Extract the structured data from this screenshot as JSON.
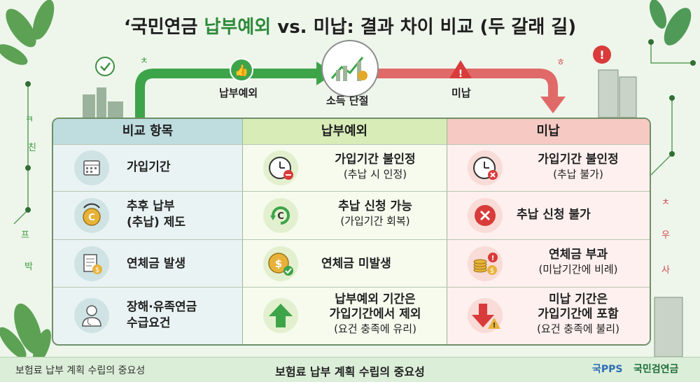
{
  "title": {
    "prefix": "‘국민연금 ",
    "highlight": "납부예외",
    "suffix": " vs. 미납: 결과 차이 비교 (두 갈래 길)"
  },
  "flow": {
    "left_label": "납부예외",
    "center_label": "소득 단절",
    "right_label": "미납"
  },
  "table": {
    "headers": [
      "비교 항목",
      "납부예외",
      "미납"
    ],
    "rows": [
      {
        "label": "가입기간",
        "paid": [
          "가입기간 불인정",
          "(추납 시 인정)"
        ],
        "unpaid": [
          "가입기간 불인정",
          "(추납 불가)"
        ]
      },
      {
        "label": [
          "추후 납부",
          "(추납) 제도"
        ],
        "paid": [
          "추납 신청 가능",
          "(가입기간 회복)"
        ],
        "unpaid": [
          "추납 신청 불가"
        ]
      },
      {
        "label": "연체금 발생",
        "paid": [
          "연체금 미발생"
        ],
        "unpaid": [
          "연체금 부과",
          "(미납기간에 비례)"
        ]
      },
      {
        "label": [
          "장해·유족연금",
          "수급요건"
        ],
        "paid": [
          "납부예외 기간은",
          "가입기간에서 제외",
          "(요건 충족에 유리)"
        ],
        "unpaid": [
          "미납 기간은",
          "가입기간에 포함",
          "(요건 충족에 불리)"
        ]
      }
    ]
  },
  "footer": {
    "left": "보험료 납부 계획 수립의 중요성",
    "center": "보험료 납부 계획 수립의 중요성",
    "logo1": "국PPS",
    "logo2": "국민검연금"
  },
  "decorations": {
    "left_chars": [
      "ㅋ",
      "친",
      "프",
      "박",
      "ㅊ"
    ],
    "right_chars": [
      "ㅎ",
      "ㅊ",
      "우",
      "사"
    ]
  },
  "colors": {
    "paid_green": "#3ea44a",
    "unpaid_red": "#e06a68",
    "title_highlight": "#2e8b3a"
  }
}
